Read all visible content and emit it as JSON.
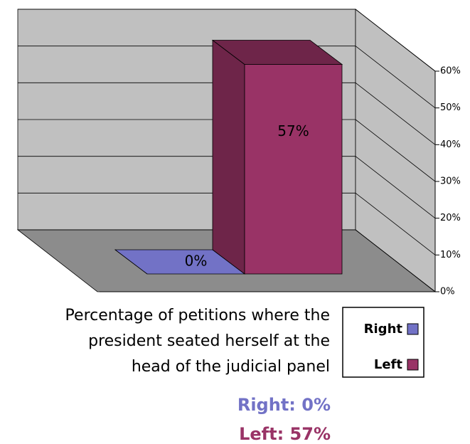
{
  "chart_data": {
    "type": "bar3d",
    "categories": [
      "Right",
      "Left"
    ],
    "values": [
      0,
      57
    ],
    "value_labels": [
      "0%",
      "57%"
    ],
    "colors": [
      "#7272c6",
      "#993366"
    ],
    "ylim": [
      0,
      60
    ],
    "yticks": [
      {
        "value": 0,
        "label": "0%"
      },
      {
        "value": 10,
        "label": "10%"
      },
      {
        "value": 20,
        "label": "20%"
      },
      {
        "value": 30,
        "label": "30%"
      },
      {
        "value": 40,
        "label": "40%"
      },
      {
        "value": 50,
        "label": "50%"
      },
      {
        "value": 60,
        "label": "60%"
      }
    ],
    "grid": true,
    "legend": "right",
    "caption": [
      "Percentage of petitions where the",
      "president seated herself at the",
      "head of the judicial panel"
    ],
    "annotations": [
      "Right: 0%",
      "Left: 57%"
    ]
  }
}
